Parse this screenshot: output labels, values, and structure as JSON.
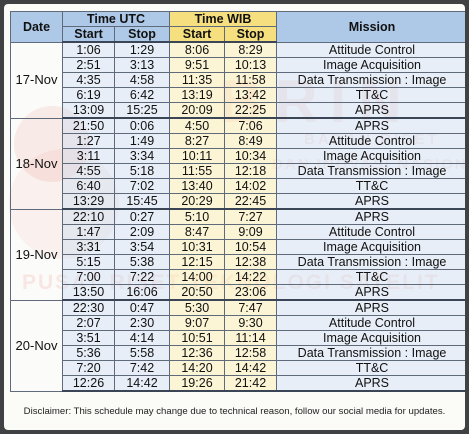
{
  "header": {
    "date": "Date",
    "time_utc": "Time UTC",
    "time_wib": "Time WIB",
    "mission": "Mission",
    "start": "Start",
    "stop": "Stop"
  },
  "watermark": {
    "brand": "BRIN",
    "line1": "BADAN RISET",
    "line2": "DAN INOVASI NASIONAL",
    "line3": "PUSAT RISET TEKNOLOGI SATELIT"
  },
  "colors": {
    "header_blue": "#aec9e8",
    "header_yellow": "#f6df7e",
    "watermark_red": "#e24b3c"
  },
  "days": [
    {
      "date": "17-Nov",
      "rows": [
        {
          "utc_start": "1:06",
          "utc_stop": "1:29",
          "wib_start": "8:06",
          "wib_stop": "8:29",
          "mission": "Attitude Control"
        },
        {
          "utc_start": "2:51",
          "utc_stop": "3:13",
          "wib_start": "9:51",
          "wib_stop": "10:13",
          "mission": "Image Acquisition"
        },
        {
          "utc_start": "4:35",
          "utc_stop": "4:58",
          "wib_start": "11:35",
          "wib_stop": "11:58",
          "mission": "Data Transmission : Image"
        },
        {
          "utc_start": "6:19",
          "utc_stop": "6:42",
          "wib_start": "13:19",
          "wib_stop": "13:42",
          "mission": "TT&C"
        },
        {
          "utc_start": "13:09",
          "utc_stop": "15:25",
          "wib_start": "20:09",
          "wib_stop": "22:25",
          "mission": "APRS"
        }
      ]
    },
    {
      "date": "18-Nov",
      "rows": [
        {
          "utc_start": "21:50",
          "utc_stop": "0:06",
          "wib_start": "4:50",
          "wib_stop": "7:06",
          "mission": "APRS"
        },
        {
          "utc_start": "1:27",
          "utc_stop": "1:49",
          "wib_start": "8:27",
          "wib_stop": "8:49",
          "mission": "Attitude Control"
        },
        {
          "utc_start": "3:11",
          "utc_stop": "3:34",
          "wib_start": "10:11",
          "wib_stop": "10:34",
          "mission": "Image Acquisition"
        },
        {
          "utc_start": "4:55",
          "utc_stop": "5:18",
          "wib_start": "11:55",
          "wib_stop": "12:18",
          "mission": "Data Transmission : Image"
        },
        {
          "utc_start": "6:40",
          "utc_stop": "7:02",
          "wib_start": "13:40",
          "wib_stop": "14:02",
          "mission": "TT&C"
        },
        {
          "utc_start": "13:29",
          "utc_stop": "15:45",
          "wib_start": "20:29",
          "wib_stop": "22:45",
          "mission": "APRS"
        }
      ]
    },
    {
      "date": "19-Nov",
      "rows": [
        {
          "utc_start": "22:10",
          "utc_stop": "0:27",
          "wib_start": "5:10",
          "wib_stop": "7:27",
          "mission": "APRS"
        },
        {
          "utc_start": "1:47",
          "utc_stop": "2:09",
          "wib_start": "8:47",
          "wib_stop": "9:09",
          "mission": "Attitude Control"
        },
        {
          "utc_start": "3:31",
          "utc_stop": "3:54",
          "wib_start": "10:31",
          "wib_stop": "10:54",
          "mission": "Image Acquisition"
        },
        {
          "utc_start": "5:15",
          "utc_stop": "5:38",
          "wib_start": "12:15",
          "wib_stop": "12:38",
          "mission": "Data Transmission : Image"
        },
        {
          "utc_start": "7:00",
          "utc_stop": "7:22",
          "wib_start": "14:00",
          "wib_stop": "14:22",
          "mission": "TT&C"
        },
        {
          "utc_start": "13:50",
          "utc_stop": "16:06",
          "wib_start": "20:50",
          "wib_stop": "23:06",
          "mission": "APRS"
        }
      ]
    },
    {
      "date": "20-Nov",
      "rows": [
        {
          "utc_start": "22:30",
          "utc_stop": "0:47",
          "wib_start": "5:30",
          "wib_stop": "7:47",
          "mission": "APRS"
        },
        {
          "utc_start": "2:07",
          "utc_stop": "2:30",
          "wib_start": "9:07",
          "wib_stop": "9:30",
          "mission": "Attitude Control"
        },
        {
          "utc_start": "3:51",
          "utc_stop": "4:14",
          "wib_start": "10:51",
          "wib_stop": "11:14",
          "mission": "Image Acquisition"
        },
        {
          "utc_start": "5:36",
          "utc_stop": "5:58",
          "wib_start": "12:36",
          "wib_stop": "12:58",
          "mission": "Data Transmission : Image"
        },
        {
          "utc_start": "7:20",
          "utc_stop": "7:42",
          "wib_start": "14:20",
          "wib_stop": "14:42",
          "mission": "TT&C"
        },
        {
          "utc_start": "12:26",
          "utc_stop": "14:42",
          "wib_start": "19:26",
          "wib_stop": "21:42",
          "mission": "APRS"
        }
      ]
    }
  ],
  "disclaimer": "Disclaimer: This schedule may change due to technical reason, follow our social media for updates."
}
